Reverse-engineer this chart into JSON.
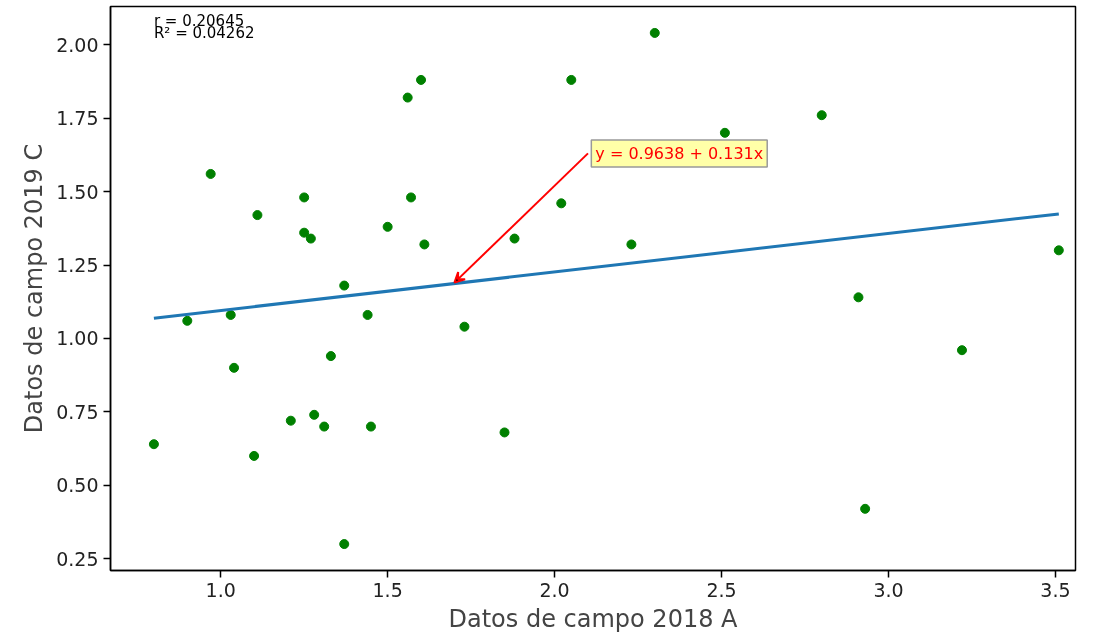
{
  "chart_data": {
    "type": "scatter",
    "xlabel": "Datos de campo 2018 A",
    "ylabel": "Datos de campo 2019 C",
    "xlim": [
      0.67,
      3.56
    ],
    "ylim": [
      0.21,
      2.13
    ],
    "xticks": [
      {
        "value": 1.0,
        "label": "1.0"
      },
      {
        "value": 1.5,
        "label": "1.5"
      },
      {
        "value": 2.0,
        "label": "2.0"
      },
      {
        "value": 2.5,
        "label": "2.5"
      },
      {
        "value": 3.0,
        "label": "3.0"
      },
      {
        "value": 3.5,
        "label": "3.5"
      }
    ],
    "yticks": [
      {
        "value": 0.25,
        "label": "0.25"
      },
      {
        "value": 0.5,
        "label": "0.50"
      },
      {
        "value": 0.75,
        "label": "0.75"
      },
      {
        "value": 1.0,
        "label": "1.00"
      },
      {
        "value": 1.25,
        "label": "1.25"
      },
      {
        "value": 1.5,
        "label": "1.50"
      },
      {
        "value": 1.75,
        "label": "1.75"
      },
      {
        "value": 2.0,
        "label": "2.00"
      }
    ],
    "grid": false,
    "marker": "circle",
    "annotations": [
      "r = 0.20645",
      "R² = 0.04262",
      {
        "text": "y = 0.9638 + 0.131x",
        "x": 1.7,
        "y": 1.19
      }
    ],
    "series": [
      {
        "color": "#008000",
        "x": [
          0.8,
          0.9,
          0.97,
          1.03,
          1.04,
          1.1,
          1.11,
          1.21,
          1.25,
          1.25,
          1.27,
          1.28,
          1.31,
          1.33,
          1.37,
          1.37,
          1.44,
          1.45,
          1.5,
          1.56,
          1.57,
          1.6,
          1.61,
          1.73,
          1.85,
          1.88,
          2.02,
          2.05,
          2.23,
          2.3,
          2.51,
          2.8,
          2.91,
          2.93,
          3.22,
          3.51
        ],
        "values": [
          0.64,
          1.06,
          1.56,
          1.08,
          0.9,
          0.6,
          1.42,
          0.72,
          1.48,
          1.36,
          1.34,
          0.74,
          0.7,
          0.94,
          1.18,
          0.3,
          1.08,
          0.7,
          1.38,
          1.82,
          1.48,
          1.88,
          1.32,
          1.04,
          0.68,
          1.34,
          1.46,
          1.88,
          1.32,
          2.04,
          1.7,
          1.76,
          1.14,
          0.42,
          0.96,
          1.3
        ]
      },
      {
        "type": "line",
        "marker": "none",
        "color": "#1f77b4",
        "line_style": "solid",
        "x": [
          0.8,
          3.51
        ],
        "values": [
          1.069,
          1.424
        ]
      }
    ]
  }
}
